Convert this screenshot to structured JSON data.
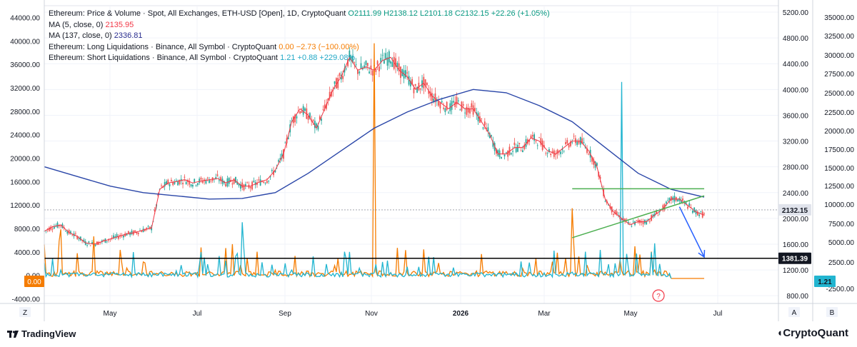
{
  "legend": {
    "main": {
      "label": "Ethereum: Price & Volume · Spot, All Exchanges, ETH-USD [Open], 1D, CryptoQuant",
      "o": "O2111.99",
      "h": "H2138.12",
      "l": "L2101.18",
      "c": "C2132.15",
      "chg": "+22.26 (+1.05%)"
    },
    "ma5": {
      "label": "MA (5, close, 0)",
      "value": "2135.95"
    },
    "ma137": {
      "label": "MA (137, close, 0)",
      "value": "2336.81"
    },
    "long_liq": {
      "label": "Ethereum: Long Liquidations · Binance, All Symbol · CryptoQuant",
      "value": "0.00 −2.73 (−100.00%)"
    },
    "short_liq": {
      "label": "Ethereum: Short Liquidations · Binance, All Symbol · CryptoQuant",
      "value": "1.21 +0.88 +229.08%"
    }
  },
  "colors": {
    "ma5": "#f23645",
    "ma137": "#2a46a8",
    "long": "#f57c00",
    "short": "#22b5d0",
    "trend": "#4caf50",
    "support": "#000000",
    "arrow": "#2962ff",
    "candle_up": "#26a69a",
    "candle_down": "#ef5350"
  },
  "footer": {
    "tradingview": "TradingView",
    "cryptoquant": "CryptoQuant"
  },
  "badges": {
    "z": "Z",
    "a": "A",
    "b": "B",
    "help": "?"
  },
  "chart_data": {
    "type": "line",
    "x_ticks": [
      "May",
      "Jul",
      "Sep",
      "Nov",
      "2026",
      "Mar",
      "May",
      "Jul"
    ],
    "left_axis": {
      "ticks": [
        -4000,
        0,
        4000,
        8000,
        12000,
        16000,
        20000,
        24000,
        28000,
        32000,
        36000,
        40000,
        44000
      ],
      "ylim": [
        -4800,
        46000
      ]
    },
    "price_axis": {
      "ticks": [
        800,
        1200,
        1600,
        2000,
        2400,
        2800,
        3200,
        3600,
        4000,
        4400,
        4800,
        5200
      ],
      "ylim": [
        680,
        5300
      ]
    },
    "right_axis": {
      "ticks": [
        -2500,
        2500,
        5000,
        7500,
        10000,
        12500,
        15000,
        17500,
        20000,
        22500,
        25000,
        27500,
        30000,
        32500,
        35000
      ]
    },
    "axis_labels": {
      "current_price": "2132.15",
      "support": "1381.39",
      "long_value": "0.00",
      "short_value": "1.21"
    },
    "support_level": 1381.39,
    "series": [
      {
        "name": "Ethereum: Price & Volume · Spot, All Exchanges, ETH-USD [Open], 1D, CryptoQuant",
        "axis": "price",
        "x": [
          0,
          5,
          10,
          15,
          20,
          25,
          30,
          35,
          40,
          45,
          50,
          55,
          60,
          65,
          70,
          75,
          80,
          85,
          90,
          95,
          100,
          105,
          110,
          115,
          120,
          125,
          130,
          135,
          140,
          145,
          150,
          155,
          160,
          165,
          170,
          175,
          180,
          185,
          190,
          195,
          200,
          205,
          210,
          215,
          220,
          225,
          230,
          235,
          240,
          245,
          250,
          255,
          260,
          265,
          270,
          275,
          280,
          285,
          290,
          295,
          300,
          305,
          310,
          315,
          320,
          325,
          330,
          335,
          340,
          345,
          350,
          355,
          360,
          365,
          370,
          375,
          380,
          385,
          390,
          395,
          400
        ],
        "values": [
          1800,
          1870,
          1900,
          1780,
          1720,
          1620,
          1600,
          1640,
          1680,
          1720,
          1760,
          1780,
          1820,
          1850,
          2450,
          2550,
          2570,
          2600,
          2550,
          2580,
          2600,
          2620,
          2550,
          2600,
          2500,
          2500,
          2560,
          2600,
          2750,
          3000,
          3500,
          3700,
          3600,
          3400,
          3700,
          4000,
          4200,
          4500,
          4300,
          4350,
          4300,
          4450,
          4500,
          4300,
          4200,
          4000,
          4100,
          3900,
          3800,
          3700,
          3800,
          3700,
          3700,
          3500,
          3300,
          3000,
          3000,
          3100,
          3100,
          3250,
          3200,
          3050,
          3000,
          3100,
          3200,
          3200,
          3050,
          2800,
          2300,
          2100,
          2000,
          1900,
          1950,
          1950,
          2050,
          2150,
          2300,
          2300,
          2200,
          2100,
          2050
        ],
        "values_per_point": "daily open price, sampled every 5 days (index)"
      },
      {
        "name": "MA (137, close, 0)",
        "axis": "price",
        "x": [
          0,
          20,
          40,
          60,
          80,
          100,
          120,
          140,
          160,
          180,
          200,
          220,
          240,
          260,
          280,
          300,
          320,
          340,
          360,
          380,
          400
        ],
        "values": [
          2800,
          2650,
          2500,
          2400,
          2350,
          2300,
          2310,
          2400,
          2700,
          3050,
          3400,
          3650,
          3850,
          4000,
          3950,
          3750,
          3500,
          3100,
          2700,
          2450,
          2330
        ]
      },
      {
        "name": "Ethereum: Long Liquidations · Binance, All Symbol · CryptoQuant",
        "axis": "right",
        "x": [
          0,
          10,
          20,
          30,
          40,
          50,
          60,
          70,
          80,
          90,
          100,
          110,
          120,
          130,
          140,
          150,
          160,
          170,
          180,
          190,
          200,
          210,
          220,
          230,
          240,
          250,
          260,
          270,
          280,
          290,
          300,
          310,
          320,
          330,
          340,
          350,
          360,
          370,
          380
        ],
        "values": [
          800,
          7000,
          300,
          6000,
          200,
          1500,
          500,
          300,
          800,
          200,
          1000,
          400,
          700,
          300,
          1200,
          500,
          1000,
          300,
          600,
          400,
          33500,
          300,
          800,
          1600,
          300,
          900,
          700,
          200,
          600,
          1400,
          400,
          800,
          10000,
          1200,
          900,
          1100,
          600,
          1200,
          0
        ]
      },
      {
        "name": "Ethereum: Short Liquidations · Binance, All Symbol · CryptoQuant",
        "axis": "right",
        "x": [
          0,
          10,
          20,
          30,
          40,
          50,
          60,
          70,
          80,
          90,
          100,
          110,
          120,
          130,
          140,
          150,
          160,
          170,
          180,
          190,
          200,
          210,
          220,
          230,
          240,
          250,
          260,
          270,
          280,
          290,
          300,
          310,
          320,
          330,
          340,
          350,
          360,
          370,
          380
        ],
        "values": [
          600,
          1200,
          800,
          400,
          600,
          500,
          700,
          800,
          1100,
          400,
          900,
          500,
          8000,
          300,
          600,
          1200,
          700,
          400,
          900,
          600,
          500,
          400,
          800,
          500,
          400,
          300,
          600,
          500,
          300,
          400,
          800,
          600,
          900,
          700,
          500,
          28000,
          800,
          5000,
          1.21
        ]
      }
    ],
    "annotations": [
      {
        "type": "trendline",
        "from": [
          320,
          2460
        ],
        "to": [
          400,
          2460
        ],
        "color": "#4caf50"
      },
      {
        "type": "trendline",
        "from": [
          320,
          1700
        ],
        "to": [
          400,
          2350
        ],
        "color": "#4caf50"
      },
      {
        "type": "arrow",
        "from": [
          385,
          2180
        ],
        "to": [
          400,
          1400
        ],
        "color": "#2962ff"
      },
      {
        "type": "hline",
        "value": 1381.39,
        "color": "#000000"
      }
    ]
  }
}
